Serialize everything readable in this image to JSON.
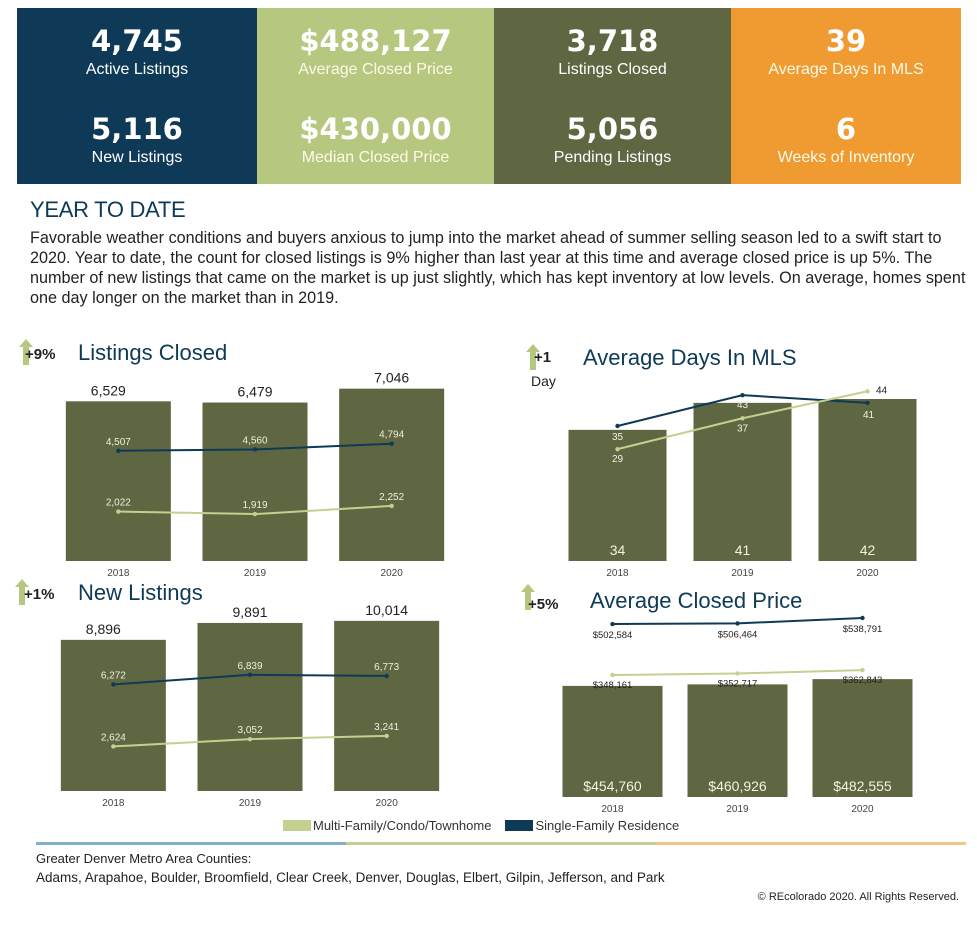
{
  "stats": [
    {
      "value": "4,745",
      "label": "Active Listings",
      "color": "#0e3a57"
    },
    {
      "value": "$488,127",
      "label": "Average Closed Price",
      "color": "#b6c77f"
    },
    {
      "value": "3,718",
      "label": "Listings Closed",
      "color": "#5e6642"
    },
    {
      "value": "39",
      "label": "Average Days In MLS",
      "color": "#ef9b32"
    },
    {
      "value": "5,116",
      "label": "New Listings",
      "color": "#0e3a57"
    },
    {
      "value": "$430,000",
      "label": "Median Closed Price",
      "color": "#b6c77f"
    },
    {
      "value": "5,056",
      "label": "Pending Listings",
      "color": "#5e6642"
    },
    {
      "value": "6",
      "label": "Weeks of Inventory",
      "color": "#ef9b32"
    }
  ],
  "ytd": {
    "title": "YEAR TO DATE",
    "text": "Favorable weather conditions and buyers anxious to jump into the market ahead of summer selling season led to a swift start to 2020.  Year to date, the count for closed listings is 9% higher than last year at this time and average closed price is up 5%. The number of new listings that came on the market is up just slightly, which has kept inventory at low levels. On average, homes spent one day longer on the market than in 2019."
  },
  "charts": {
    "listings_closed": {
      "title": "Listings Closed",
      "badge": "+9%"
    },
    "days_in_mls": {
      "title": "Average Days In MLS",
      "badge": "+1",
      "badge_sub": "Day"
    },
    "new_listings": {
      "title": "New Listings",
      "badge": "+1%"
    },
    "avg_price": {
      "title": "Average Closed Price",
      "badge": "+5%"
    }
  },
  "legend": {
    "mf_label": "Multi-Family/Condo/Townhome",
    "sf_label": "Single-Family Residence",
    "mf_color": "#c3d08f",
    "sf_color": "#0e3a57"
  },
  "footer": {
    "line1": "Greater Denver Metro Area Counties:",
    "line2": "Adams, Arapahoe, Boulder, Broomfield, Clear Creek, Denver, Douglas, Elbert, Gilpin, Jefferson, and Park",
    "copyright": "© REcolorado 2020. All Rights Reserved."
  },
  "colors": {
    "bar": "#5e6642",
    "sf_line": "#0e3a57",
    "mf_line": "#c3d08f",
    "arrow": "#b6c77f"
  },
  "chart_data": [
    {
      "type": "bar",
      "title": "Listings Closed",
      "categories": [
        "2018",
        "2019",
        "2020"
      ],
      "value_labels": [
        "6,529",
        "6,479",
        "7,046"
      ],
      "values": [
        6529,
        6479,
        7046
      ],
      "ylim": [
        0,
        7400
      ],
      "series": [
        {
          "name": "Single-Family Residence",
          "type": "line",
          "values": [
            4507,
            4560,
            4794
          ],
          "labels": [
            "4,507",
            "4,560",
            "4,794"
          ]
        },
        {
          "name": "Multi-Family/Condo/Townhome",
          "type": "line",
          "values": [
            2022,
            1919,
            2252
          ],
          "labels": [
            "2,022",
            "1,919",
            "2,252"
          ]
        }
      ]
    },
    {
      "type": "bar",
      "title": "Average Days In MLS",
      "categories": [
        "2018",
        "2019",
        "2020"
      ],
      "value_labels": [
        "34",
        "41",
        "42"
      ],
      "values": [
        34,
        41,
        42
      ],
      "ylim": [
        0,
        49
      ],
      "series": [
        {
          "name": "Single-Family Residence",
          "type": "line",
          "values": [
            35,
            43,
            41
          ],
          "labels": [
            "35",
            "43",
            "41"
          ]
        },
        {
          "name": "Multi-Family/Condo/Townhome",
          "type": "line",
          "values": [
            29,
            37,
            44
          ],
          "labels": [
            "29",
            "37",
            "44"
          ]
        }
      ]
    },
    {
      "type": "bar",
      "title": "New Listings",
      "categories": [
        "2018",
        "2019",
        "2020"
      ],
      "value_labels": [
        "8,896",
        "9,891",
        "10,014"
      ],
      "values": [
        8896,
        9891,
        10014
      ],
      "ylim": [
        0,
        10300
      ],
      "series": [
        {
          "name": "Single-Family Residence",
          "type": "line",
          "values": [
            6272,
            6839,
            6773
          ],
          "labels": [
            "6,272",
            "6,839",
            "6,773"
          ]
        },
        {
          "name": "Multi-Family/Condo/Townhome",
          "type": "line",
          "values": [
            2624,
            3052,
            3241
          ],
          "labels": [
            "2,624",
            "3,052",
            "3,241"
          ]
        }
      ]
    },
    {
      "type": "bar",
      "title": "Average Closed Price",
      "categories": [
        "2018",
        "2019",
        "2020"
      ],
      "value_labels": [
        "$454,760",
        "$460,926",
        "$482,555"
      ],
      "values": [
        454760,
        460926,
        482555
      ],
      "series": [
        {
          "name": "Single-Family Residence",
          "type": "line",
          "values": [
            502584,
            506464,
            538791
          ],
          "labels": [
            "$502,584",
            "$506,464",
            "$538,791"
          ]
        },
        {
          "name": "Multi-Family/Condo/Townhome",
          "type": "line",
          "values": [
            348161,
            352717,
            362843
          ],
          "labels": [
            "$348,161",
            "$352,717",
            "$362,843"
          ]
        }
      ]
    }
  ]
}
